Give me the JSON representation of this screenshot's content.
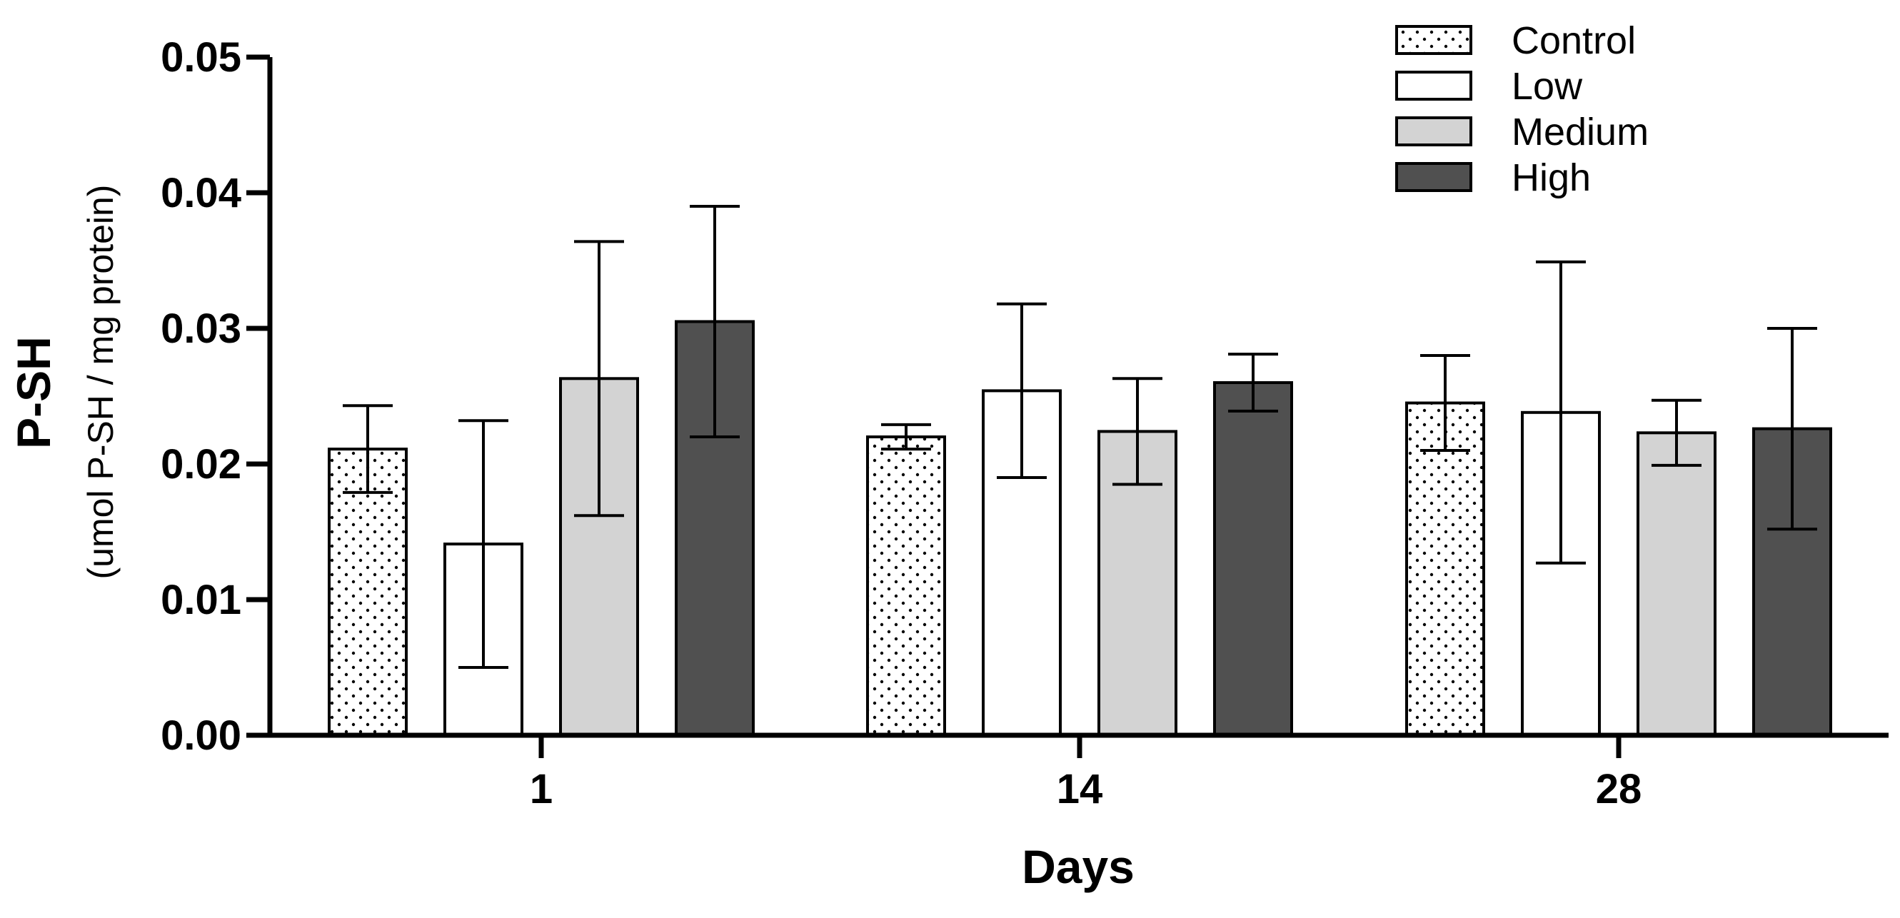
{
  "chart_data": {
    "type": "bar",
    "xlabel": "Days",
    "ylabel": "P-SH",
    "ylabel_sub": "(umol P-SH / mg protein)",
    "categories": [
      "1",
      "14",
      "28"
    ],
    "ylim": [
      0,
      0.05
    ],
    "yticks": [
      "0.00",
      "0.01",
      "0.02",
      "0.03",
      "0.04",
      "0.05"
    ],
    "grid": false,
    "legend_position": "top-right",
    "series": [
      {
        "name": "Control",
        "values": [
          0.0211,
          0.022,
          0.0245
        ],
        "errors": [
          0.0032,
          0.0009,
          0.0035
        ],
        "fill": "dots",
        "color": "#ffffff"
      },
      {
        "name": "Low",
        "values": [
          0.0141,
          0.0254,
          0.0238
        ],
        "errors": [
          0.0091,
          0.0064,
          0.0111
        ],
        "fill": "solid",
        "color": "#ffffff"
      },
      {
        "name": "Medium",
        "values": [
          0.0263,
          0.0224,
          0.0223
        ],
        "errors": [
          0.0101,
          0.0039,
          0.0024
        ],
        "fill": "solid",
        "color": "#d3d3d3"
      },
      {
        "name": "High",
        "values": [
          0.0305,
          0.026,
          0.0226
        ],
        "errors": [
          0.0085,
          0.0021,
          0.0074
        ],
        "fill": "solid",
        "color": "#505050"
      }
    ]
  }
}
